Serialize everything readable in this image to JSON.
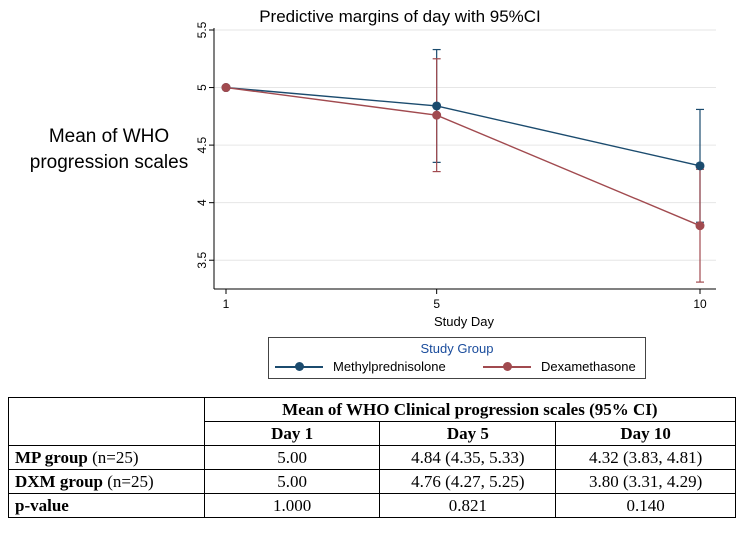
{
  "chart_data": {
    "type": "line",
    "title": "Predictive margins of day with 95%CI",
    "xlabel": "Study Day",
    "ylabel": "Mean of WHO progression scales",
    "ylabel_lines": [
      "Mean of WHO",
      "progression scales"
    ],
    "x": [
      1,
      5,
      10
    ],
    "x_ticks": [
      "1",
      "5",
      "10"
    ],
    "xlim": [
      1,
      10
    ],
    "ylim": [
      3.25,
      5.5
    ],
    "y_ticks": [
      3.5,
      4,
      4.5,
      5,
      5.5
    ],
    "y_tick_labels": [
      "3.5",
      "4",
      "4.5",
      "5",
      "5.5"
    ],
    "grid": true,
    "series": [
      {
        "name": "Methylprednisolone",
        "color": "#1b4b6e",
        "values": [
          5.0,
          4.84,
          4.32
        ],
        "ci_low": [
          5.0,
          4.35,
          3.83
        ],
        "ci_high": [
          5.0,
          5.33,
          4.81
        ]
      },
      {
        "name": "Dexamethasone",
        "color": "#a14a4f",
        "values": [
          5.0,
          4.76,
          3.8
        ],
        "ci_low": [
          5.0,
          4.27,
          3.31
        ],
        "ci_high": [
          5.0,
          5.25,
          4.29
        ]
      }
    ],
    "legend": {
      "title": "Study Group",
      "position": "bottom"
    }
  },
  "table": {
    "header_top": "Mean of WHO Clinical progression scales (95% CI)",
    "columns": [
      "Day 1",
      "Day 5",
      "Day 10"
    ],
    "rows": [
      {
        "label_bold": "MP group",
        "label_rest": " (n=25)",
        "cells": [
          "5.00",
          "4.84 (4.35, 5.33)",
          "4.32 (3.83, 4.81)"
        ]
      },
      {
        "label_bold": "DXM group",
        "label_rest": " (n=25)",
        "cells": [
          "5.00",
          "4.76 (4.27, 5.25)",
          "3.80 (3.31, 4.29)"
        ]
      },
      {
        "label_bold": "p-value",
        "label_rest": "",
        "cells": [
          "1.000",
          "0.821",
          "0.140"
        ]
      }
    ]
  }
}
